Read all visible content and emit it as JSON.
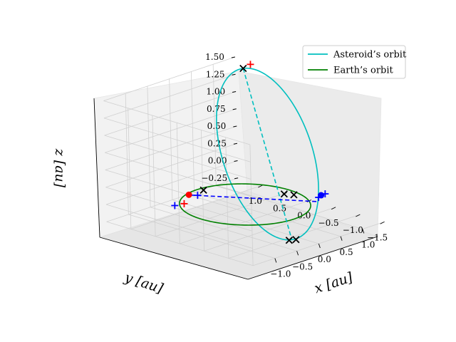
{
  "chart_data": {
    "type": "3d-line",
    "title": "",
    "xlabel": "x [au]",
    "ylabel": "y [au]",
    "zlabel": "z [au]",
    "xlim": [
      -1.5,
      1.5
    ],
    "ylim": [
      -1.5,
      1.5
    ],
    "zlim": [
      -0.25,
      1.5
    ],
    "x_ticks": [
      "−1.0",
      "−0.5",
      "0.0",
      "0.5",
      "1.0"
    ],
    "y_ticks": [
      "1.0",
      "0.5",
      "0.0",
      "−0.5",
      "−1.0",
      "−1.5"
    ],
    "z_ticks": [
      "1.50",
      "1.25",
      "1.00",
      "0.75",
      "0.50",
      "0.25",
      "0.00",
      "−0.25"
    ],
    "legend": {
      "position": "top-right",
      "entries": [
        {
          "label": "Asteroid’s orbit",
          "color": "#00bfbf"
        },
        {
          "label": "Earth’s orbit",
          "color": "#008000"
        }
      ]
    },
    "series": [
      {
        "name": "Asteroid’s orbit",
        "kind": "ellipse",
        "color": "#00bfbf",
        "center": [
          0.7,
          0.15,
          0.55
        ],
        "u": [
          0.55,
          0.96,
          0.92
        ],
        "v": [
          0.58,
          -0.4,
          0.05
        ]
      },
      {
        "name": "Earth’s orbit",
        "kind": "ellipse",
        "color": "#008000",
        "center": [
          0.0,
          0.0,
          0.0
        ],
        "u": [
          1.0,
          0.0,
          0.0
        ],
        "v": [
          0.0,
          1.0,
          0.0
        ]
      },
      {
        "name": "Asteroid apsidal line",
        "kind": "dashed",
        "color": "#00bfbf",
        "points": [
          [
            1.25,
            1.11,
            1.47
          ],
          [
            0.15,
            -0.81,
            -0.37
          ]
        ]
      },
      {
        "name": "Earth apsidal line",
        "kind": "dashed",
        "color": "#0000ff",
        "points": [
          [
            -0.3,
            0.85,
            0.02
          ],
          [
            0.85,
            -0.75,
            0.02
          ]
        ]
      }
    ],
    "markers": [
      {
        "name": "Asteroid position",
        "symbol": "dot",
        "color": "#0000ff",
        "point": [
          0.98,
          -0.68,
          0.07
        ]
      },
      {
        "name": "Earth position",
        "symbol": "dot",
        "color": "#ff0000",
        "point": [
          -0.28,
          0.9,
          0.01
        ]
      },
      {
        "name": "node",
        "symbol": "x",
        "color": "#000000",
        "point": [
          1.25,
          1.11,
          1.47
        ]
      },
      {
        "name": "node",
        "symbol": "x",
        "color": "#000000",
        "point": [
          -0.55,
          0.35,
          0.25
        ]
      },
      {
        "name": "node",
        "symbol": "x",
        "color": "#000000",
        "point": [
          0.1,
          -0.8,
          -0.37
        ]
      },
      {
        "name": "node",
        "symbol": "x",
        "color": "#000000",
        "point": [
          0.2,
          -0.85,
          -0.37
        ]
      },
      {
        "name": "node",
        "symbol": "x",
        "color": "#000000",
        "point": [
          1.0,
          0.1,
          -0.08
        ]
      },
      {
        "name": "node",
        "symbol": "x",
        "color": "#000000",
        "point": [
          1.0,
          -0.1,
          -0.05
        ]
      },
      {
        "name": "perihelion",
        "symbol": "plus",
        "color": "#ff0000",
        "point": [
          1.35,
          1.05,
          1.52
        ]
      },
      {
        "name": "perihelion",
        "symbol": "plus",
        "color": "#ff0000",
        "point": [
          -1.05,
          0.3,
          0.17
        ]
      },
      {
        "name": "aphelion",
        "symbol": "plus",
        "color": "#0000ff",
        "point": [
          -0.28,
          0.72,
          0.04
        ]
      },
      {
        "name": "aphelion",
        "symbol": "plus",
        "color": "#0000ff",
        "point": [
          -0.55,
          0.95,
          -0.1
        ]
      },
      {
        "name": "aphelion",
        "symbol": "plus",
        "color": "#0000ff",
        "point": [
          0.9,
          -0.7,
          0.06
        ]
      },
      {
        "name": "aphelion",
        "symbol": "plus",
        "color": "#0000ff",
        "point": [
          1.05,
          -0.7,
          0.08
        ]
      }
    ]
  }
}
